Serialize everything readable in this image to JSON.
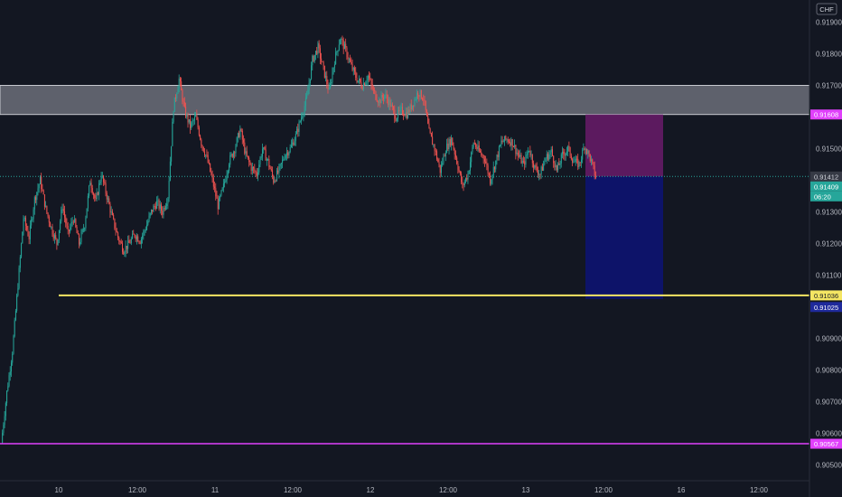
{
  "currency_label": "CHF",
  "colors": {
    "background": "#131722",
    "up": "#26a69a",
    "down": "#ef5350",
    "zone": "#787b86",
    "target_line": "#f5e663",
    "stop_line": "#e040fb",
    "risk_zone": "#6a1b6a",
    "reward_zone": "#0d1470"
  },
  "chart_data": {
    "type": "candlestick",
    "y_ticks": [
      "0.91900",
      "0.91800",
      "0.91700",
      "0.91500",
      "0.91300",
      "0.91200",
      "0.91100",
      "0.90900",
      "0.90800",
      "0.90700",
      "0.90600",
      "0.90500"
    ],
    "x_ticks": [
      "10",
      "12:00",
      "11",
      "12:00",
      "12",
      "12:00",
      "13",
      "12:00",
      "16",
      "12:00"
    ],
    "ylim": [
      0.9045,
      0.9197
    ],
    "resistance_zone": [
      0.91608,
      0.917
    ],
    "target_level": 0.91036,
    "stop_level": 0.90567,
    "position": {
      "entry": 0.91412,
      "stop": 0.91608,
      "target": 0.91025
    },
    "price_tags": {
      "zone_bottom": "0.91608",
      "entry": "0.91412",
      "last": "0.91409",
      "countdown": "06:20",
      "target_line": "0.91036",
      "target": "0.91025",
      "stop_line": "0.90567"
    },
    "price_path": [
      0.9057,
      0.9073,
      0.9086,
      0.9107,
      0.9128,
      0.9122,
      0.9134,
      0.914,
      0.9131,
      0.9125,
      0.912,
      0.9132,
      0.9123,
      0.9128,
      0.912,
      0.9126,
      0.914,
      0.9133,
      0.9142,
      0.9135,
      0.9128,
      0.9122,
      0.9118,
      0.912,
      0.9123,
      0.9121,
      0.9125,
      0.913,
      0.9133,
      0.913,
      0.9135,
      0.9163,
      0.9172,
      0.9162,
      0.9157,
      0.916,
      0.9152,
      0.9147,
      0.914,
      0.9132,
      0.9138,
      0.9146,
      0.915,
      0.9156,
      0.9148,
      0.9144,
      0.9142,
      0.915,
      0.9146,
      0.914,
      0.9143,
      0.9148,
      0.915,
      0.9154,
      0.916,
      0.9166,
      0.9178,
      0.9182,
      0.9175,
      0.9168,
      0.9178,
      0.9185,
      0.9181,
      0.9176,
      0.9172,
      0.917,
      0.9173,
      0.9168,
      0.9165,
      0.9167,
      0.9164,
      0.916,
      0.9162,
      0.9161,
      0.9164,
      0.9168,
      0.9166,
      0.9155,
      0.915,
      0.9143,
      0.915,
      0.9153,
      0.9146,
      0.9138,
      0.9142,
      0.9152,
      0.9149,
      0.9147,
      0.914,
      0.9146,
      0.9152,
      0.9153,
      0.9152,
      0.9148,
      0.9145,
      0.915,
      0.9144,
      0.9142,
      0.9147,
      0.9149,
      0.9143,
      0.9148,
      0.915,
      0.9146,
      0.9145,
      0.9151,
      0.9147,
      0.9141
    ]
  }
}
